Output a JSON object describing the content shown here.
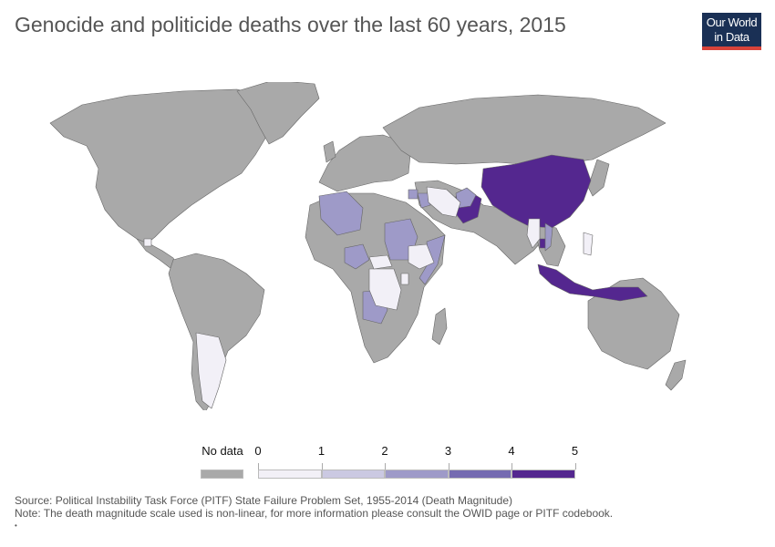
{
  "title": "Genocide and politicide deaths over the last 60 years, 2015",
  "logo": {
    "line1": "Our World",
    "line2": "in Data"
  },
  "colors": {
    "no_data": "#a9a9a9",
    "scale": [
      "#f2f0f7",
      "#cbc9e2",
      "#9e9ac8",
      "#756bb1",
      "#54278f"
    ],
    "logo_bg": "#1a3055",
    "logo_accent": "#d8433a",
    "border": "#666666"
  },
  "legend": {
    "no_data_label": "No data",
    "tick_labels": [
      "0",
      "1",
      "2",
      "3",
      "4",
      "5"
    ]
  },
  "map": {
    "regions": [
      {
        "name": "China",
        "value": 5
      },
      {
        "name": "Indonesia",
        "value": 5
      },
      {
        "name": "Cambodia",
        "value": 5
      },
      {
        "name": "Pakistan",
        "value": 5
      },
      {
        "name": "Afghanistan",
        "value": 3
      },
      {
        "name": "Iraq",
        "value": 3
      },
      {
        "name": "Syria",
        "value": 3
      },
      {
        "name": "Sudan",
        "value": 3
      },
      {
        "name": "Algeria",
        "value": 3
      },
      {
        "name": "Nigeria",
        "value": 3
      },
      {
        "name": "Angola",
        "value": 3
      },
      {
        "name": "Somalia",
        "value": 3
      },
      {
        "name": "Vietnam",
        "value": 3
      },
      {
        "name": "Iran",
        "value": 1
      },
      {
        "name": "Argentina",
        "value": 1
      },
      {
        "name": "DR Congo",
        "value": 1
      },
      {
        "name": "Uganda",
        "value": 1
      },
      {
        "name": "Burma",
        "value": 1
      },
      {
        "name": "Philippines",
        "value": 1
      },
      {
        "name": "Ethiopia",
        "value": 0
      },
      {
        "name": "Central African Republic",
        "value": 0
      },
      {
        "name": "Guatemala",
        "value": 0
      }
    ]
  },
  "footer": {
    "source": "Source: Political Instability Task Force (PITF) State Failure Problem Set, 1955-2014 (Death Magnitude)",
    "note": "Note: The death magnitude scale used is non-linear, for more information please consult the OWID page or PITF codebook.",
    "marker": "•"
  }
}
